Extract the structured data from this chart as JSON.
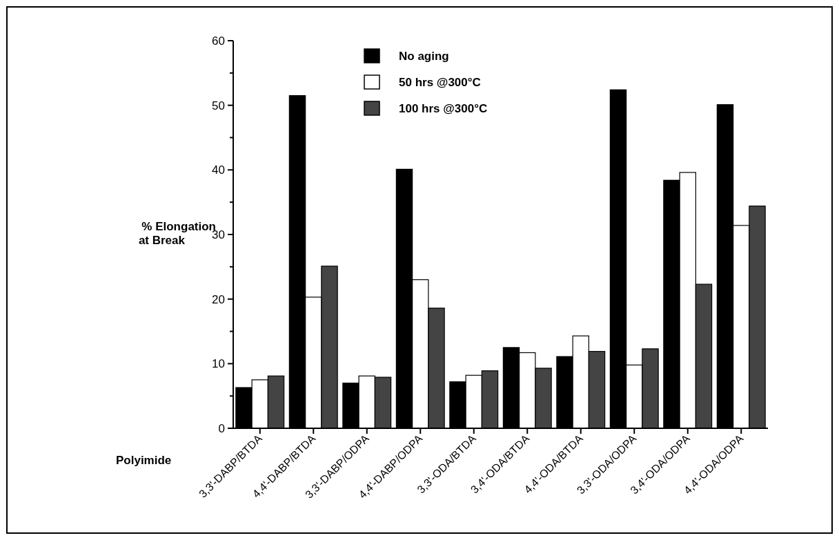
{
  "chart_data": {
    "type": "bar",
    "xlabel": "Polyimide",
    "ylabel": "% Elongation at Break",
    "categories": [
      "3,3'-DABP/BTDA",
      "4,4'-DABP/BTDA",
      "3,3'-DABP/ODPA",
      "4,4'-DABP/ODPA",
      "3,3'-ODA/BTDA",
      "3,4'-ODA/BTDA",
      "4,4'-ODA/BTDA",
      "3,3'-ODA/ODPA",
      "3,4'-ODA/ODPA",
      "4,4'-ODA/ODPA"
    ],
    "series": [
      {
        "name": "No aging",
        "color": "#000000",
        "values": [
          6.3,
          51.5,
          7.0,
          40.1,
          7.2,
          12.5,
          11.1,
          52.4,
          38.4,
          50.1
        ]
      },
      {
        "name": "50 hrs @300°C",
        "color": "#ffffff",
        "values": [
          7.5,
          20.3,
          8.1,
          23.0,
          8.2,
          11.7,
          14.3,
          9.8,
          39.6,
          31.4
        ]
      },
      {
        "name": "100 hrs @300°C",
        "color": "#444444",
        "values": [
          8.1,
          25.1,
          7.9,
          18.6,
          8.9,
          9.3,
          11.9,
          12.3,
          22.3,
          34.4
        ]
      }
    ],
    "ylim": [
      0,
      60
    ],
    "yticks": [
      0,
      {
        "value": 5,
        "label": null
      },
      10,
      {
        "value": 15,
        "label": null
      },
      20,
      {
        "value": 25,
        "label": null
      },
      30,
      {
        "value": 35,
        "label": null
      },
      40,
      {
        "value": 45,
        "label": null
      },
      50,
      {
        "value": 55,
        "label": null
      },
      60
    ],
    "legend": "top"
  }
}
